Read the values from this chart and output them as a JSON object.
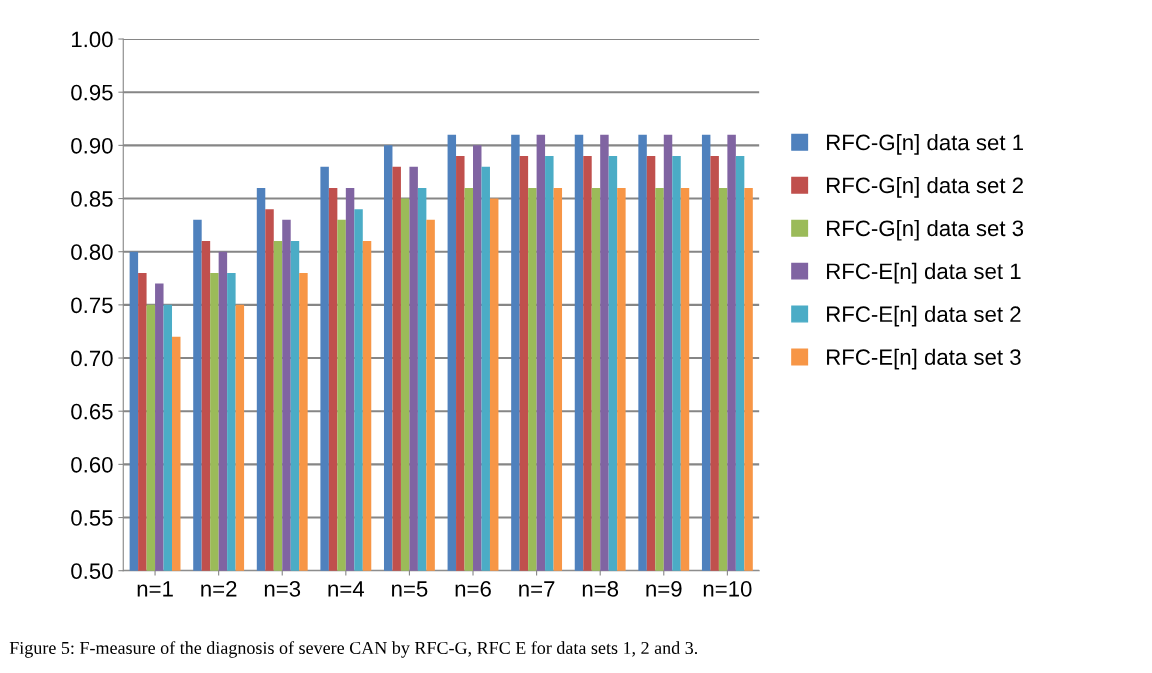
{
  "chart_data": {
    "type": "bar",
    "categories": [
      "n=1",
      "n=2",
      "n=3",
      "n=4",
      "n=5",
      "n=6",
      "n=7",
      "n=8",
      "n=9",
      "n=10"
    ],
    "series": [
      {
        "name": "RFC-G[n] data set 1",
        "color": "#4f81bd",
        "values": [
          0.8,
          0.83,
          0.86,
          0.88,
          0.9,
          0.91,
          0.91,
          0.91,
          0.91,
          0.91
        ]
      },
      {
        "name": "RFC-G[n] data set 2",
        "color": "#c0504d",
        "values": [
          0.78,
          0.81,
          0.84,
          0.86,
          0.88,
          0.89,
          0.89,
          0.89,
          0.89,
          0.89
        ]
      },
      {
        "name": "RFC-G[n] data set 3",
        "color": "#9bbb59",
        "values": [
          0.75,
          0.78,
          0.81,
          0.83,
          0.85,
          0.86,
          0.86,
          0.86,
          0.86,
          0.86
        ]
      },
      {
        "name": "RFC-E[n] data set 1",
        "color": "#8064a2",
        "values": [
          0.77,
          0.8,
          0.83,
          0.86,
          0.88,
          0.9,
          0.91,
          0.91,
          0.91,
          0.91
        ]
      },
      {
        "name": "RFC-E[n] data set 2",
        "color": "#4bacc6",
        "values": [
          0.75,
          0.78,
          0.81,
          0.84,
          0.86,
          0.88,
          0.89,
          0.89,
          0.89,
          0.89
        ]
      },
      {
        "name": "RFC-E[n] data set 3",
        "color": "#f79646",
        "values": [
          0.72,
          0.75,
          0.78,
          0.81,
          0.83,
          0.85,
          0.86,
          0.86,
          0.86,
          0.86
        ]
      }
    ],
    "ylim": [
      0.5,
      1.0
    ],
    "yticks": [
      {
        "value": 0.5,
        "label": "0.50"
      },
      {
        "value": 0.55,
        "label": "0.55"
      },
      {
        "value": 0.6,
        "label": "0.60"
      },
      {
        "value": 0.65,
        "label": "0.65"
      },
      {
        "value": 0.7,
        "label": "0.70"
      },
      {
        "value": 0.75,
        "label": "0.75"
      },
      {
        "value": 0.8,
        "label": "0.80"
      },
      {
        "value": 0.85,
        "label": "0.85"
      },
      {
        "value": 0.9,
        "label": "0.90"
      },
      {
        "value": 0.95,
        "label": "0.95"
      },
      {
        "value": 1.0,
        "label": "1.00"
      }
    ],
    "grid": "y",
    "legend": "right",
    "annotations": [
      "Figure 5: F-measure of the diagnosis of severe CAN by RFC-G, RFC E for data sets 1, 2 and 3."
    ]
  }
}
